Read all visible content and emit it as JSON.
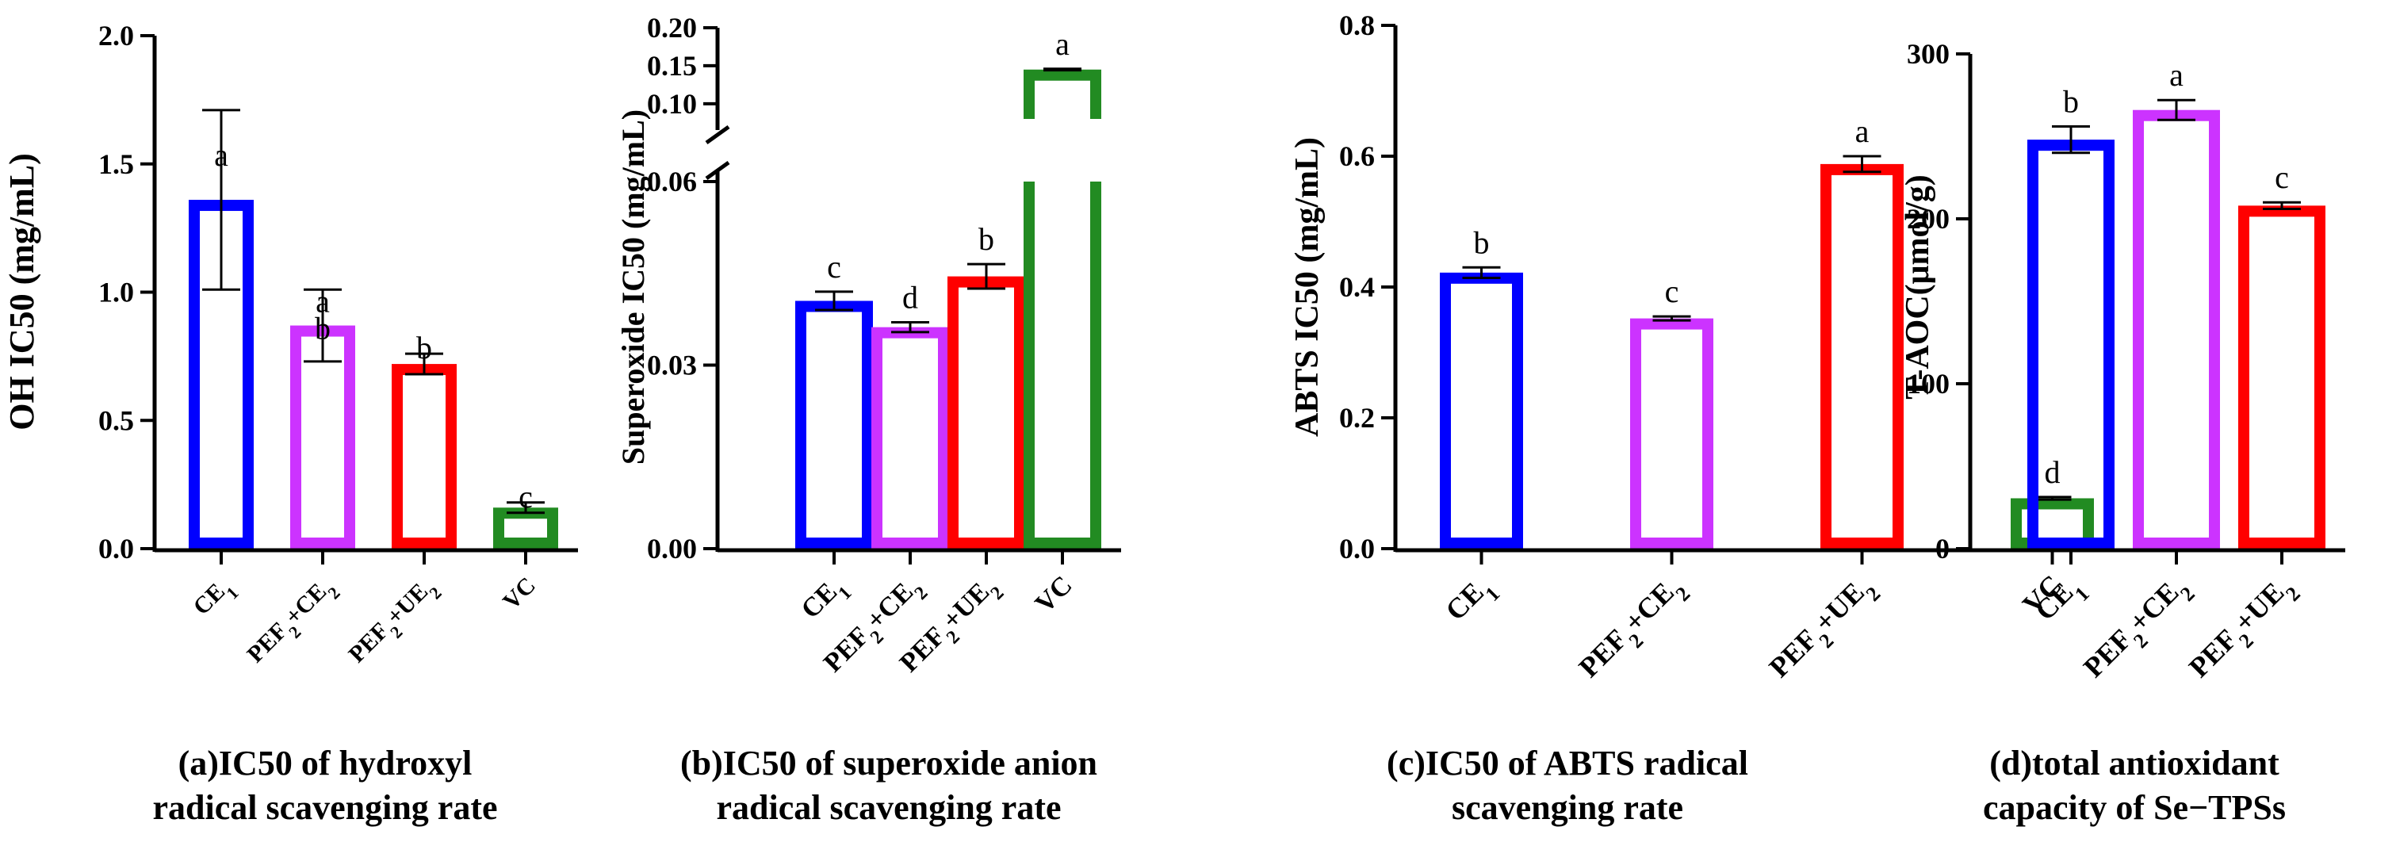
{
  "chart_data": [
    {
      "type": "bar",
      "panel": "a",
      "caption_line1": "(a)IC50 of hydroxyl",
      "caption_line2": "radical scavenging rate",
      "ylabel": "OH IC50 (mg/mL)",
      "ylim": [
        0,
        2.0
      ],
      "yticks": [
        0.0,
        0.5,
        1.0,
        1.5,
        2.0
      ],
      "ytick_labels": [
        "0.0",
        "0.5",
        "1.0",
        "1.5",
        "2.0"
      ],
      "categories": [
        {
          "base": "CE",
          "sub": "1",
          "tail": "",
          "sub2": ""
        },
        {
          "base": "PEF",
          "sub": "2",
          "tail": "+CE",
          "sub2": "2"
        },
        {
          "base": "PEF",
          "sub": "2",
          "tail": "+UE",
          "sub2": "2"
        },
        {
          "base": "VC",
          "sub": "",
          "tail": "",
          "sub2": ""
        }
      ],
      "values": [
        1.36,
        0.87,
        0.72,
        0.16
      ],
      "errors": [
        0.35,
        0.14,
        0.04,
        0.02
      ],
      "letters": [
        "a",
        "a\nb",
        "b",
        "c"
      ],
      "colors": [
        "#0000ff",
        "#cc33ff",
        "#ff0000",
        "#228b22"
      ]
    },
    {
      "type": "bar",
      "panel": "b",
      "caption_line1": "(b)IC50 of superoxide anion",
      "caption_line2": "radical scavenging rate",
      "ylabel": "Superoxide IC50 (mg/mL)",
      "axis_break": {
        "lower": [
          0,
          0.06
        ],
        "upper": [
          0.08,
          0.2
        ]
      },
      "yticks": [
        0.0,
        0.03,
        0.06,
        0.1,
        0.15,
        0.2
      ],
      "ytick_labels": [
        "0.00",
        "0.03",
        "0.06",
        "0.10",
        "0.15",
        "0.20"
      ],
      "categories": [
        {
          "base": "CE",
          "sub": "1",
          "tail": "",
          "sub2": ""
        },
        {
          "base": "PEF",
          "sub": "2",
          "tail": "+CE",
          "sub2": "2"
        },
        {
          "base": "PEF",
          "sub": "2",
          "tail": "+UE",
          "sub2": "2"
        },
        {
          "base": "VC",
          "sub": "",
          "tail": "",
          "sub2": ""
        }
      ],
      "values": [
        0.0405,
        0.0362,
        0.0445,
        0.145
      ],
      "errors": [
        0.0015,
        0.0008,
        0.002,
        0.001
      ],
      "letters": [
        "c",
        "d",
        "b",
        "a"
      ],
      "colors": [
        "#0000ff",
        "#cc33ff",
        "#ff0000",
        "#228b22"
      ]
    },
    {
      "type": "bar",
      "panel": "c",
      "caption_line1": "(c)IC50 of ABTS radical",
      "caption_line2": "scavenging rate",
      "ylabel": "ABTS IC50 (mg/mL)",
      "ylim": [
        0,
        0.8
      ],
      "yticks": [
        0.0,
        0.2,
        0.4,
        0.6,
        0.8
      ],
      "ytick_labels": [
        "0.0",
        "0.2",
        "0.4",
        "0.6",
        "0.8"
      ],
      "categories": [
        {
          "base": "CE",
          "sub": "1",
          "tail": "",
          "sub2": ""
        },
        {
          "base": "PEF",
          "sub": "2",
          "tail": "+CE",
          "sub2": "2"
        },
        {
          "base": "PEF",
          "sub": "2",
          "tail": "+UE",
          "sub2": "2"
        },
        {
          "base": "VC",
          "sub": "",
          "tail": "",
          "sub2": ""
        }
      ],
      "values": [
        0.422,
        0.352,
        0.588,
        0.077
      ],
      "errors": [
        0.008,
        0.003,
        0.012,
        0.002
      ],
      "letters": [
        "b",
        "c",
        "a",
        "d"
      ],
      "colors": [
        "#0000ff",
        "#cc33ff",
        "#ff0000",
        "#228b22"
      ]
    },
    {
      "type": "bar",
      "panel": "d",
      "caption_line1": "(d)total antioxidant",
      "caption_line2": "capacity of Se−TPSs",
      "ylabel": "T-AOC(μmol/g)",
      "ylim": [
        0,
        300
      ],
      "yticks": [
        0,
        100,
        200,
        300
      ],
      "ytick_labels": [
        "0",
        "100",
        "200",
        "300"
      ],
      "categories": [
        {
          "base": "CE",
          "sub": "1",
          "tail": "",
          "sub2": ""
        },
        {
          "base": "PEF",
          "sub": "2",
          "tail": "+CE",
          "sub2": "2"
        },
        {
          "base": "PEF",
          "sub": "2",
          "tail": "+UE",
          "sub2": "2"
        }
      ],
      "values": [
        248,
        266,
        208
      ],
      "errors": [
        8,
        6,
        2
      ],
      "letters": [
        "b",
        "a",
        "c"
      ],
      "colors": [
        "#0000ff",
        "#cc33ff",
        "#ff0000"
      ]
    }
  ]
}
